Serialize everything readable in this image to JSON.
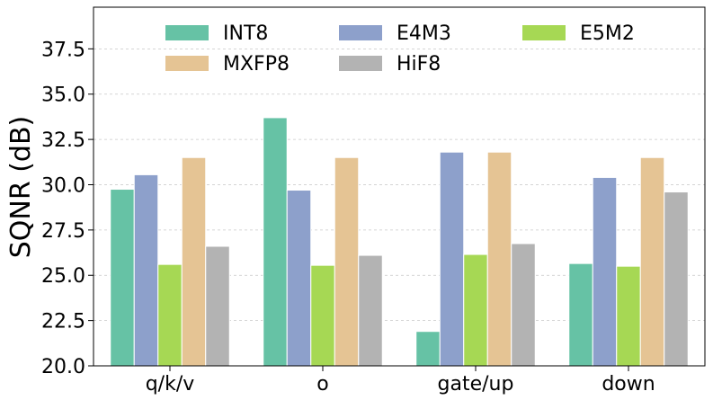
{
  "chart_data": {
    "type": "bar",
    "title": "",
    "xlabel": "",
    "ylabel": "SQNR (dB)",
    "ylim": [
      20.0,
      39.8
    ],
    "yticks": [
      "20.0",
      "22.5",
      "25.0",
      "27.5",
      "30.0",
      "32.5",
      "35.0",
      "37.5"
    ],
    "grid": "horizontal-dashed",
    "legend_position": "top",
    "categories": [
      "q/k/v",
      "o",
      "gate/up",
      "down"
    ],
    "series": [
      {
        "name": "INT8",
        "color": "#66c2a5",
        "values": [
          29.75,
          33.7,
          21.9,
          25.65
        ]
      },
      {
        "name": "E4M3",
        "color": "#8da0cb",
        "values": [
          30.55,
          29.7,
          31.8,
          30.4
        ]
      },
      {
        "name": "E5M2",
        "color": "#a6d854",
        "values": [
          25.6,
          25.55,
          26.15,
          25.5
        ]
      },
      {
        "name": "MXFP8",
        "color": "#e5c494",
        "values": [
          31.5,
          31.5,
          31.8,
          31.5
        ]
      },
      {
        "name": "HiF8",
        "color": "#b3b3b3",
        "values": [
          26.6,
          26.1,
          26.75,
          29.6
        ]
      }
    ]
  }
}
